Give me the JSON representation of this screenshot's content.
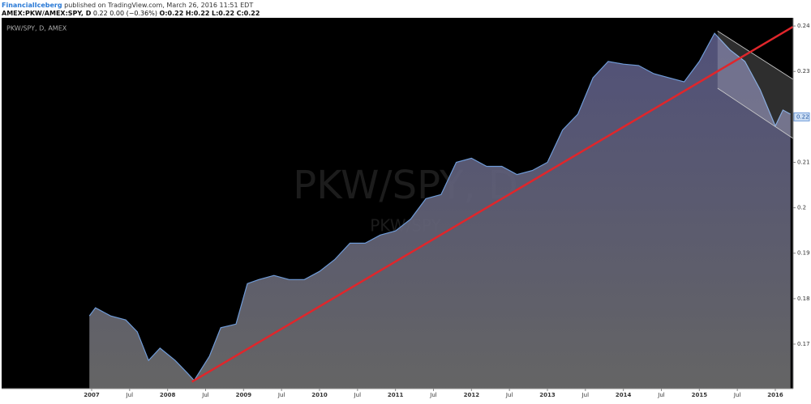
{
  "header": {
    "author": "FinancialIceberg",
    "published": "published on TradingView.com, March 26, 2016 11:51 EDT",
    "symbol": "AMEX:PKW/AMEX:SPY, D",
    "change": "0.22 0.00 (−0.36%)",
    "ohlc": [
      "O:0.22",
      "H:0.22",
      "L:0.22",
      "C:0.22"
    ]
  },
  "chart_data": {
    "type": "area",
    "legend": "PKW/SPY, D, AMEX",
    "watermark": "PKW/SPY, D",
    "watermark_sub": "PKW/SPY",
    "series": [
      {
        "name": "PKW/SPY",
        "color": "#6f9bd8",
        "x": [
          2006.97,
          2007.05,
          2007.25,
          2007.45,
          2007.6,
          2007.75,
          2007.9,
          2008.1,
          2008.25,
          2008.35,
          2008.55,
          2008.7,
          2008.9,
          2009.05,
          2009.2,
          2009.4,
          2009.6,
          2009.8,
          2010.0,
          2010.2,
          2010.4,
          2010.6,
          2010.8,
          2011.0,
          2011.2,
          2011.4,
          2011.6,
          2011.8,
          2012.0,
          2012.2,
          2012.4,
          2012.6,
          2012.8,
          2013.0,
          2013.2,
          2013.4,
          2013.6,
          2013.8,
          2014.0,
          2014.2,
          2014.4,
          2014.6,
          2014.8,
          2015.0,
          2015.2,
          2015.4,
          2015.6,
          2015.8,
          2016.0,
          2016.1,
          2016.2
        ],
        "values": [
          0.1762,
          0.178,
          0.1762,
          0.1753,
          0.1727,
          0.1664,
          0.1691,
          0.1664,
          0.1638,
          0.162,
          0.1673,
          0.1736,
          0.1744,
          0.1833,
          0.1842,
          0.1851,
          0.1842,
          0.1842,
          0.186,
          0.1886,
          0.1922,
          0.1922,
          0.194,
          0.1949,
          0.1975,
          0.202,
          0.2029,
          0.21,
          0.2109,
          0.2091,
          0.2091,
          0.2073,
          0.2082,
          0.21,
          0.2171,
          0.2206,
          0.2286,
          0.2322,
          0.2316,
          0.2313,
          0.2295,
          0.2286,
          0.2277,
          0.2322,
          0.2384,
          0.2348,
          0.2322,
          0.226,
          0.218,
          0.2215,
          0.2206
        ]
      }
    ],
    "last_price": 0.22,
    "trend_line": {
      "color": "#e0262b",
      "x": [
        2008.32,
        2016.23
      ],
      "values": [
        0.1617,
        0.2398
      ]
    },
    "channel": {
      "x": [
        2015.24,
        2016.23
      ],
      "upper": [
        0.2389,
        0.2283
      ],
      "lower": [
        0.2263,
        0.2153
      ]
    },
    "xlim": [
      2005.815,
      2016.235
    ],
    "ylim": [
      0.1602,
      0.2418
    ],
    "xticks": [
      {
        "value": 2007,
        "label": "2007"
      },
      {
        "value": 2007.5,
        "label": "Jul"
      },
      {
        "value": 2008,
        "label": "2008"
      },
      {
        "value": 2008.5,
        "label": "Jul"
      },
      {
        "value": 2009,
        "label": "2009"
      },
      {
        "value": 2009.5,
        "label": "Jul"
      },
      {
        "value": 2010,
        "label": "2010"
      },
      {
        "value": 2010.5,
        "label": "Jul"
      },
      {
        "value": 2011,
        "label": "2011"
      },
      {
        "value": 2011.5,
        "label": "Jul"
      },
      {
        "value": 2012,
        "label": "2012"
      },
      {
        "value": 2012.5,
        "label": "Jul"
      },
      {
        "value": 2013,
        "label": "2013"
      },
      {
        "value": 2013.5,
        "label": "Jul"
      },
      {
        "value": 2014,
        "label": "2014"
      },
      {
        "value": 2014.5,
        "label": "Jul"
      },
      {
        "value": 2015,
        "label": "2015"
      },
      {
        "value": 2015.5,
        "label": "Jul"
      },
      {
        "value": 2016,
        "label": "2016"
      }
    ],
    "yticks": [
      0.17,
      0.18,
      0.19,
      0.2,
      0.21,
      0.22,
      0.23,
      0.24
    ]
  }
}
